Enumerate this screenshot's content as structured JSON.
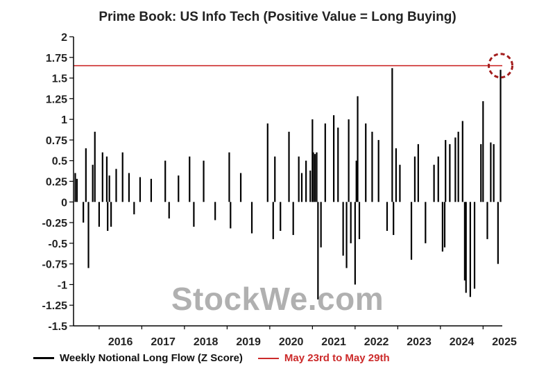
{
  "title": "Prime Book: US Info Tech (Positive Value = Long Buying)",
  "watermark": "StockWe.com",
  "legend": {
    "series_label": "Weekly Notional Long Flow (Z Score)",
    "line_label": "May 23rd to May 29th"
  },
  "colors": {
    "series": "#000000",
    "reference": "#cc2a2a",
    "circle": "#a31d1d"
  },
  "chart_data": {
    "type": "bar",
    "title": "Prime Book: US Info Tech (Positive Value = Long Buying)",
    "xlabel": "",
    "ylabel": "",
    "xlim": [
      2015.4,
      2025.45
    ],
    "ylim": [
      -1.5,
      2
    ],
    "y_ticks": [
      "2",
      "1.75",
      "1.5",
      "1.25",
      "1",
      "0.75",
      "0.5",
      "0.25",
      "0",
      "-0.25",
      "-0.5",
      "-0.75",
      "-1",
      "-1.25",
      "-1.5"
    ],
    "x_ticks": [
      "2016",
      "2017",
      "2018",
      "2019",
      "2020",
      "2021",
      "2022",
      "2023",
      "2024",
      "2025"
    ],
    "reference_line": {
      "name": "May 23rd to May 29th",
      "value": 1.65
    },
    "grid": false,
    "legend_position": "bottom",
    "series": [
      {
        "name": "Weekly Notional Long Flow (Z Score)",
        "x": [
          2015.44,
          2015.48,
          2015.63,
          2015.69,
          2015.75,
          2015.85,
          2015.9,
          2016.0,
          2016.08,
          2016.18,
          2016.2,
          2016.24,
          2016.28,
          2016.4,
          2016.55,
          2016.7,
          2016.82,
          2016.96,
          2017.22,
          2017.55,
          2017.64,
          2017.86,
          2018.12,
          2018.22,
          2018.45,
          2018.72,
          2019.05,
          2019.08,
          2019.32,
          2019.58,
          2019.95,
          2020.08,
          2020.12,
          2020.25,
          2020.45,
          2020.55,
          2020.68,
          2020.75,
          2020.85,
          2020.95,
          2021.0,
          2021.02,
          2021.06,
          2021.1,
          2021.13,
          2021.2,
          2021.3,
          2021.5,
          2021.6,
          2021.72,
          2021.8,
          2021.85,
          2021.9,
          2022.0,
          2022.03,
          2022.06,
          2022.1,
          2022.25,
          2022.4,
          2022.55,
          2022.75,
          2022.87,
          2022.9,
          2022.96,
          2023.05,
          2023.32,
          2023.4,
          2023.48,
          2023.65,
          2023.85,
          2023.95,
          2024.05,
          2024.1,
          2024.12,
          2024.22,
          2024.35,
          2024.42,
          2024.52,
          2024.57,
          2024.6,
          2024.7,
          2024.8,
          2024.95,
          2025.0,
          2025.1,
          2025.18,
          2025.25,
          2025.35,
          2025.41
        ],
        "values": [
          0.35,
          0.28,
          -0.25,
          0.65,
          -0.8,
          0.45,
          0.85,
          -0.3,
          0.6,
          0.55,
          -0.35,
          0.32,
          -0.3,
          0.4,
          0.6,
          0.35,
          -0.15,
          0.3,
          0.28,
          0.5,
          -0.2,
          0.32,
          0.55,
          -0.3,
          0.5,
          -0.22,
          0.6,
          -0.32,
          0.35,
          -0.38,
          0.95,
          -0.45,
          0.55,
          -0.35,
          0.85,
          -0.4,
          0.55,
          0.35,
          0.5,
          0.38,
          1.0,
          0.6,
          0.58,
          0.6,
          -1.18,
          -0.55,
          0.95,
          1.05,
          0.9,
          -0.65,
          -0.8,
          1.0,
          -0.5,
          -1.0,
          0.5,
          1.28,
          -0.45,
          0.95,
          0.85,
          0.75,
          -0.35,
          1.62,
          -0.4,
          0.65,
          0.45,
          -0.7,
          0.55,
          0.7,
          -0.5,
          0.45,
          0.55,
          -0.6,
          -0.55,
          0.75,
          0.7,
          0.78,
          0.85,
          0.98,
          -0.95,
          -1.1,
          -1.15,
          -1.05,
          0.7,
          1.22,
          -0.45,
          0.72,
          0.7,
          -0.75,
          1.6
        ]
      }
    ]
  }
}
